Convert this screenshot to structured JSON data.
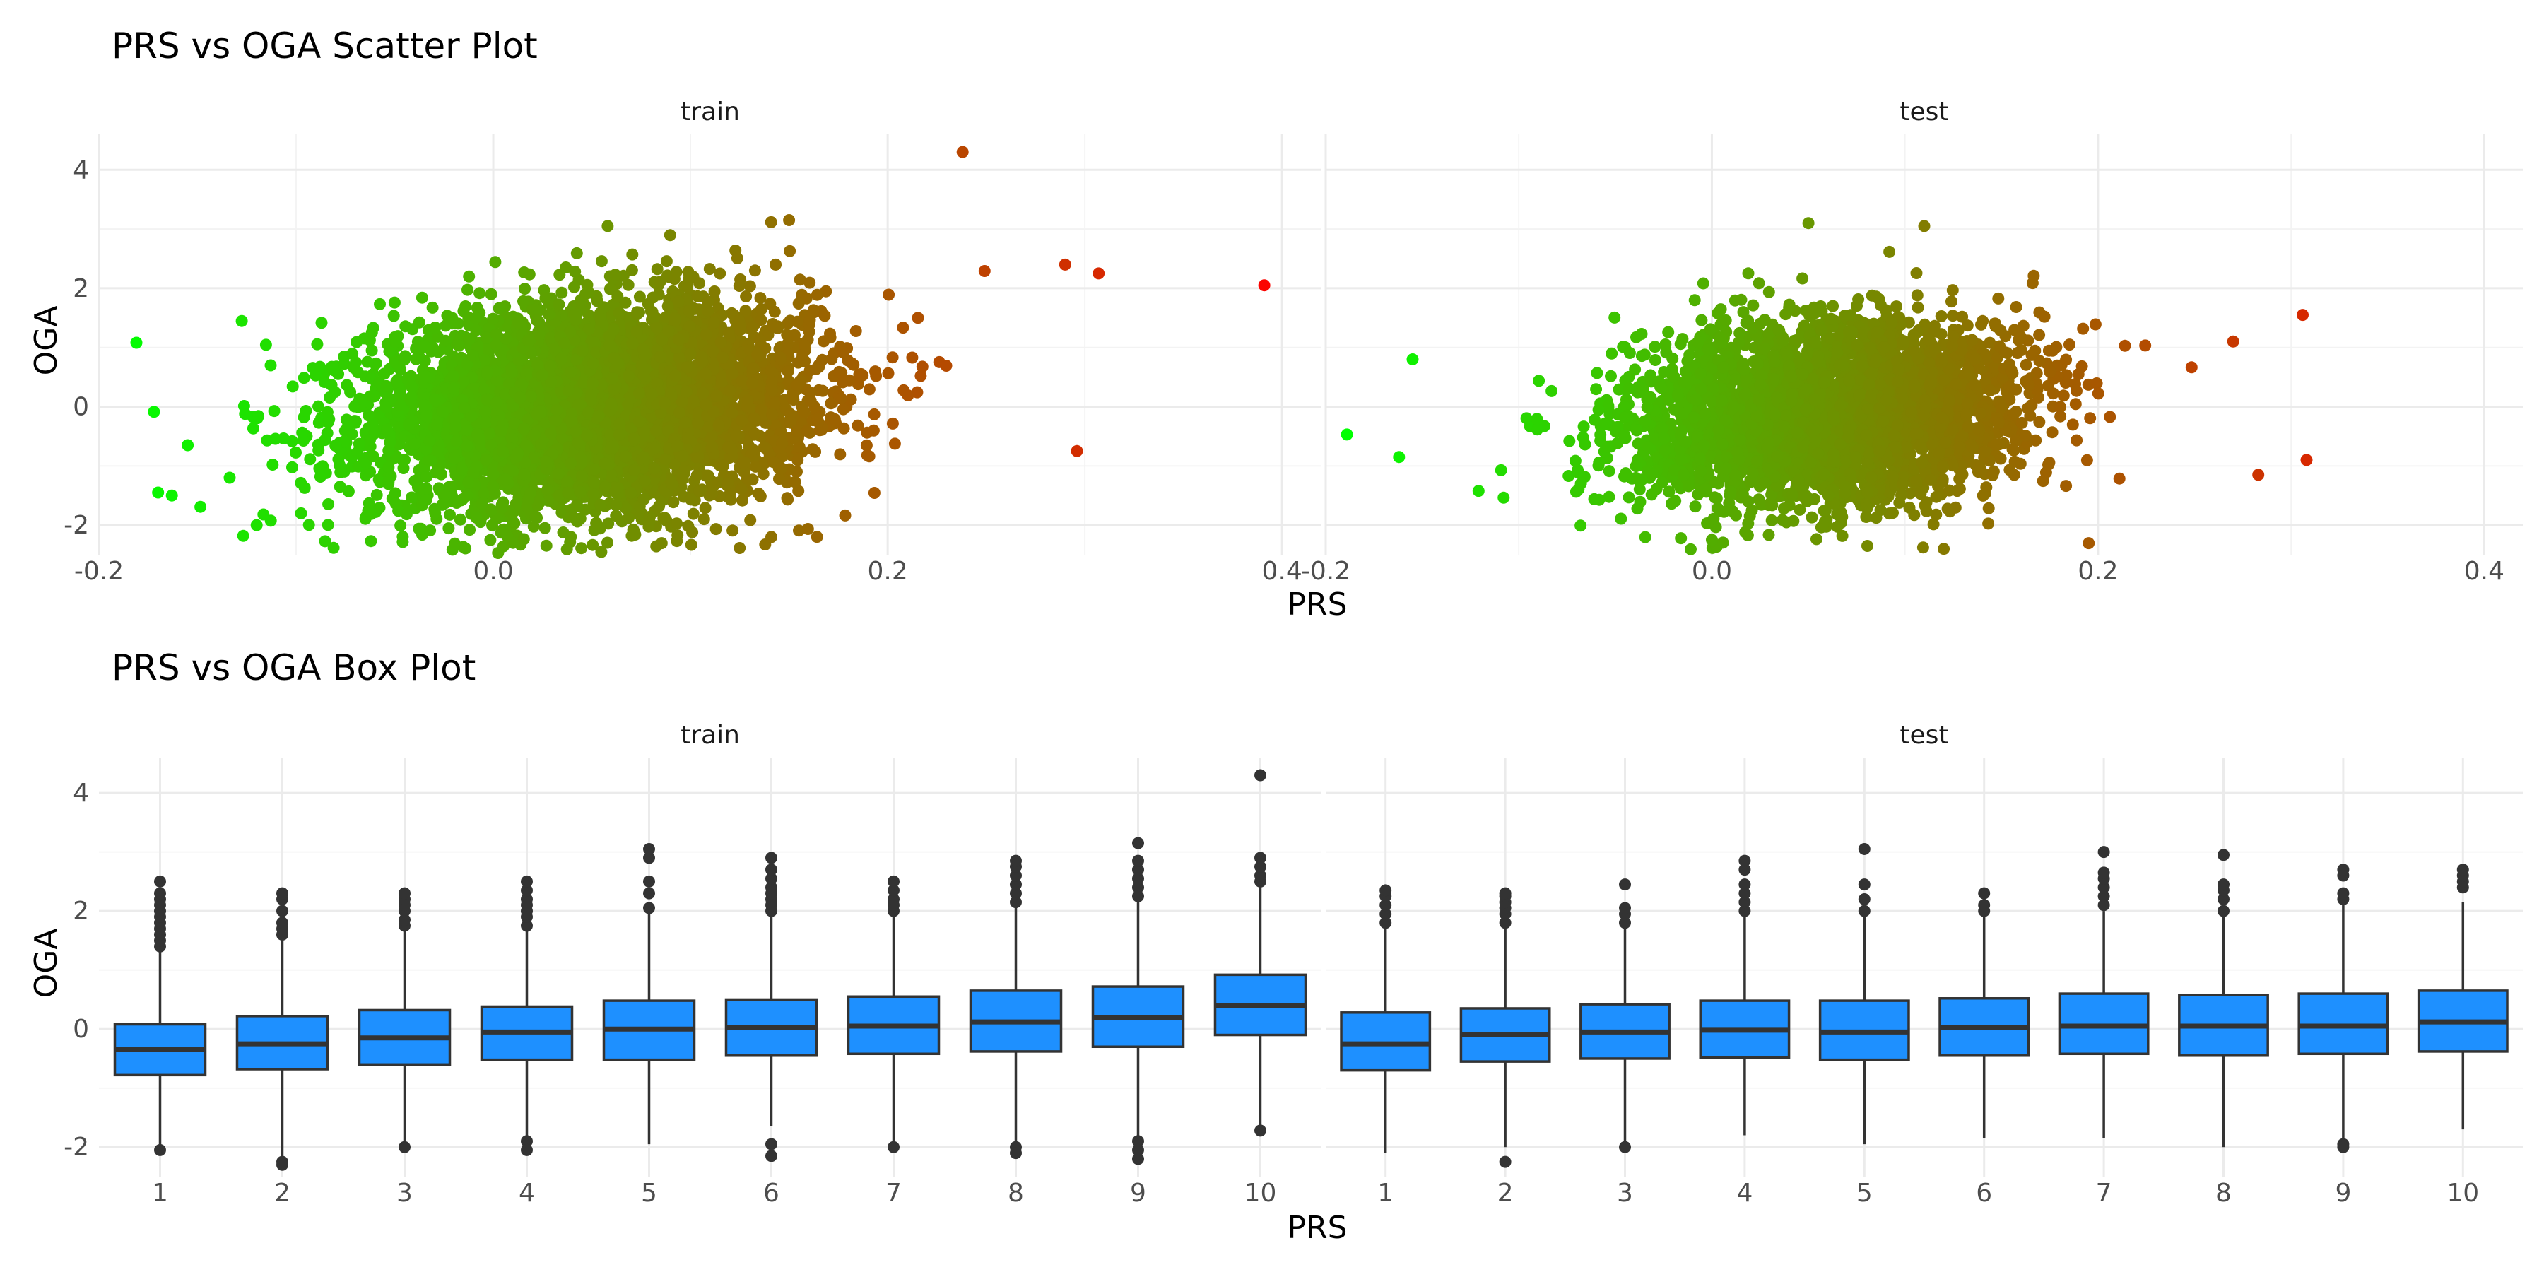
{
  "chart_data": [
    {
      "type": "scatter",
      "title": "PRS vs OGA Scatter Plot",
      "xlabel": "PRS",
      "ylabel": "OGA",
      "xlim": [
        -0.2,
        0.42
      ],
      "ylim": [
        -2.5,
        4.6
      ],
      "x_ticks": [
        -0.2,
        0.0,
        0.2,
        0.4
      ],
      "x_tick_labels": [
        "-0.2",
        "0.0",
        "0.2",
        "0.4"
      ],
      "y_ticks": [
        -2,
        0,
        2,
        4
      ],
      "y_tick_labels": [
        "-2",
        "0",
        "2",
        "4"
      ],
      "grid": true,
      "color_encoding": {
        "low": "#00ff00",
        "high": "#ff0000"
      },
      "panels": [
        {
          "strip": "train",
          "center": {
            "x": 0.05,
            "y": 0.0
          },
          "spread": {
            "x": 0.055,
            "y": 0.85
          },
          "notable_points": [
            {
              "x": -0.181,
              "y": 1.08
            },
            {
              "x": -0.163,
              "y": -1.5
            },
            {
              "x": -0.17,
              "y": -1.45
            },
            {
              "x": -0.155,
              "y": -0.65
            },
            {
              "x": -0.12,
              "y": -2.0
            },
            {
              "x": 0.238,
              "y": 4.3
            },
            {
              "x": 0.391,
              "y": 2.05
            },
            {
              "x": 0.307,
              "y": 2.25
            },
            {
              "x": 0.296,
              "y": -0.75
            },
            {
              "x": 0.29,
              "y": 2.4
            },
            {
              "x": 0.15,
              "y": 3.15
            },
            {
              "x": 0.058,
              "y": 3.05
            },
            {
              "x": 0.141,
              "y": -2.2
            },
            {
              "x": 0.01,
              "y": -2.3
            }
          ]
        },
        {
          "strip": "test",
          "center": {
            "x": 0.06,
            "y": -0.1
          },
          "spread": {
            "x": 0.05,
            "y": 0.75
          },
          "notable_points": [
            {
              "x": -0.189,
              "y": -0.47
            },
            {
              "x": -0.162,
              "y": -0.85
            },
            {
              "x": -0.155,
              "y": 0.8
            },
            {
              "x": 0.306,
              "y": 1.55
            },
            {
              "x": 0.308,
              "y": -0.9
            },
            {
              "x": 0.283,
              "y": -1.15
            },
            {
              "x": 0.11,
              "y": 3.05
            },
            {
              "x": 0.0,
              "y": -2.25
            },
            {
              "x": 0.05,
              "y": 3.1
            },
            {
              "x": 0.27,
              "y": 1.1
            }
          ]
        }
      ]
    },
    {
      "type": "box",
      "title": "PRS vs OGA Box Plot",
      "xlabel": "PRS",
      "ylabel": "OGA",
      "ylim": [
        -2.5,
        4.6
      ],
      "y_ticks": [
        -2,
        0,
        2,
        4
      ],
      "y_tick_labels": [
        "-2",
        "0",
        "2",
        "4"
      ],
      "categories": [
        "1",
        "2",
        "3",
        "4",
        "5",
        "6",
        "7",
        "8",
        "9",
        "10"
      ],
      "box_color": "#1e90ff",
      "grid": true,
      "panels": [
        {
          "strip": "train",
          "boxes": [
            {
              "q1": -0.78,
              "median": -0.35,
              "q3": 0.08,
              "whisker_low": -2.05,
              "whisker_high": 1.35,
              "outliers_high": [
                1.4,
                1.5,
                1.6,
                1.7,
                1.8,
                1.9,
                2.0,
                2.1,
                2.2,
                2.3,
                2.5
              ],
              "outliers_low": [
                -2.05
              ]
            },
            {
              "q1": -0.68,
              "median": -0.25,
              "q3": 0.22,
              "whisker_low": -2.2,
              "whisker_high": 1.55,
              "outliers_high": [
                1.6,
                1.7,
                1.8,
                2.0,
                2.2,
                2.3
              ],
              "outliers_low": [
                -2.25,
                -2.3
              ]
            },
            {
              "q1": -0.6,
              "median": -0.15,
              "q3": 0.32,
              "whisker_low": -2.0,
              "whisker_high": 1.7,
              "outliers_high": [
                1.75,
                1.85,
                2.0,
                2.1,
                2.2,
                2.3
              ],
              "outliers_low": [
                -2.0
              ]
            },
            {
              "q1": -0.52,
              "median": -0.05,
              "q3": 0.38,
              "whisker_low": -1.85,
              "whisker_high": 1.7,
              "outliers_high": [
                1.75,
                1.9,
                2.0,
                2.1,
                2.2,
                2.35,
                2.5
              ],
              "outliers_low": [
                -1.9,
                -2.05
              ]
            },
            {
              "q1": -0.52,
              "median": 0.0,
              "q3": 0.48,
              "whisker_low": -1.95,
              "whisker_high": 1.95,
              "outliers_high": [
                2.05,
                2.3,
                2.5,
                2.9,
                3.05
              ],
              "outliers_low": []
            },
            {
              "q1": -0.45,
              "median": 0.02,
              "q3": 0.5,
              "whisker_low": -1.65,
              "whisker_high": 1.95,
              "outliers_high": [
                2.0,
                2.1,
                2.2,
                2.3,
                2.4,
                2.55,
                2.7,
                2.9
              ],
              "outliers_low": [
                -1.95,
                -2.15
              ]
            },
            {
              "q1": -0.42,
              "median": 0.05,
              "q3": 0.55,
              "whisker_low": -1.95,
              "whisker_high": 1.95,
              "outliers_high": [
                2.0,
                2.1,
                2.2,
                2.35,
                2.5
              ],
              "outliers_low": [
                -2.0
              ]
            },
            {
              "q1": -0.38,
              "median": 0.12,
              "q3": 0.65,
              "whisker_low": -1.95,
              "whisker_high": 2.1,
              "outliers_high": [
                2.15,
                2.3,
                2.45,
                2.6,
                2.75,
                2.85
              ],
              "outliers_low": [
                -2.0,
                -2.1
              ]
            },
            {
              "q1": -0.3,
              "median": 0.2,
              "q3": 0.72,
              "whisker_low": -1.85,
              "whisker_high": 2.2,
              "outliers_high": [
                2.25,
                2.4,
                2.55,
                2.7,
                2.85,
                3.15
              ],
              "outliers_low": [
                -1.9,
                -2.05,
                -2.2
              ]
            },
            {
              "q1": -0.1,
              "median": 0.4,
              "q3": 0.92,
              "whisker_low": -1.7,
              "whisker_high": 2.45,
              "outliers_high": [
                2.5,
                2.6,
                2.75,
                2.9,
                4.3
              ],
              "outliers_low": [
                -1.72
              ]
            }
          ]
        },
        {
          "strip": "test",
          "boxes": [
            {
              "q1": -0.7,
              "median": -0.25,
              "q3": 0.28,
              "whisker_low": -2.1,
              "whisker_high": 1.75,
              "outliers_high": [
                1.8,
                1.95,
                2.1,
                2.25,
                2.35
              ],
              "outliers_low": []
            },
            {
              "q1": -0.55,
              "median": -0.1,
              "q3": 0.35,
              "whisker_low": -2.0,
              "whisker_high": 1.75,
              "outliers_high": [
                1.8,
                1.95,
                2.05,
                2.15,
                2.25,
                2.3
              ],
              "outliers_low": [
                -2.25
              ]
            },
            {
              "q1": -0.5,
              "median": -0.05,
              "q3": 0.42,
              "whisker_low": -1.95,
              "whisker_high": 1.75,
              "outliers_high": [
                1.8,
                1.95,
                2.05,
                2.45
              ],
              "outliers_low": [
                -2.0
              ]
            },
            {
              "q1": -0.48,
              "median": -0.02,
              "q3": 0.48,
              "whisker_low": -1.8,
              "whisker_high": 1.95,
              "outliers_high": [
                2.0,
                2.15,
                2.3,
                2.45,
                2.7,
                2.85
              ],
              "outliers_low": []
            },
            {
              "q1": -0.52,
              "median": -0.05,
              "q3": 0.48,
              "whisker_low": -1.95,
              "whisker_high": 1.95,
              "outliers_high": [
                2.0,
                2.2,
                2.45,
                3.05
              ],
              "outliers_low": []
            },
            {
              "q1": -0.45,
              "median": 0.02,
              "q3": 0.52,
              "whisker_low": -1.85,
              "whisker_high": 1.95,
              "outliers_high": [
                2.0,
                2.1,
                2.3
              ],
              "outliers_low": []
            },
            {
              "q1": -0.42,
              "median": 0.05,
              "q3": 0.6,
              "whisker_low": -1.85,
              "whisker_high": 2.0,
              "outliers_high": [
                2.1,
                2.25,
                2.4,
                2.55,
                2.65,
                3.0
              ],
              "outliers_low": []
            },
            {
              "q1": -0.45,
              "median": 0.05,
              "q3": 0.58,
              "whisker_low": -2.0,
              "whisker_high": 1.95,
              "outliers_high": [
                2.0,
                2.2,
                2.35,
                2.45,
                2.95
              ],
              "outliers_low": []
            },
            {
              "q1": -0.42,
              "median": 0.05,
              "q3": 0.6,
              "whisker_low": -1.9,
              "whisker_high": 2.1,
              "outliers_high": [
                2.2,
                2.3,
                2.6,
                2.7
              ],
              "outliers_low": [
                -1.95,
                -2.0
              ]
            },
            {
              "q1": -0.38,
              "median": 0.12,
              "q3": 0.65,
              "whisker_low": -1.7,
              "whisker_high": 2.15,
              "outliers_high": [
                2.4,
                2.5,
                2.6,
                2.7
              ],
              "outliers_low": []
            }
          ]
        }
      ]
    }
  ]
}
